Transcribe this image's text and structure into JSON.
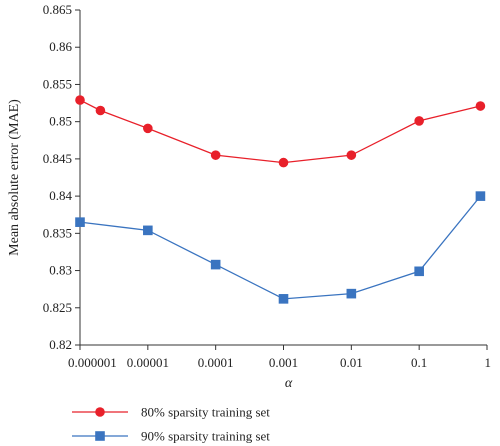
{
  "chart_data": {
    "type": "line",
    "xlabel": "α",
    "ylabel": "Mean absolute error (MAE)",
    "x_scale": "log",
    "xlim": [
      1e-06,
      1
    ],
    "ylim": [
      0.82,
      0.865
    ],
    "x_ticks": [
      "0.000001",
      "0.00001",
      "0.0001",
      "0.001",
      "0.01",
      "0.1",
      "1"
    ],
    "x_tick_values": [
      1e-06,
      1e-05,
      0.0001,
      0.001,
      0.01,
      0.1,
      1
    ],
    "y_ticks": [
      "0.82",
      "0.825",
      "0.83",
      "0.835",
      "0.84",
      "0.845",
      "0.85",
      "0.855",
      "0.86",
      "0.865"
    ],
    "y_tick_values": [
      0.82,
      0.825,
      0.83,
      0.835,
      0.84,
      0.845,
      0.85,
      0.855,
      0.86,
      0.865
    ],
    "grid": false,
    "legend_position": "bottom",
    "series": [
      {
        "name": "80% sparsity training set",
        "color": "#e8202a",
        "marker": "circle",
        "x": [
          1e-06,
          2e-06,
          1e-05,
          0.0001,
          0.001,
          0.01,
          0.1,
          0.8
        ],
        "y": [
          0.8529,
          0.8515,
          0.8491,
          0.8455,
          0.8445,
          0.8455,
          0.8501,
          0.8521
        ]
      },
      {
        "name": "90% sparsity training set",
        "color": "#3a74c0",
        "marker": "square",
        "x": [
          1e-06,
          1e-05,
          0.0001,
          0.001,
          0.01,
          0.1,
          0.8
        ],
        "y": [
          0.8365,
          0.8354,
          0.8308,
          0.8262,
          0.8269,
          0.8299,
          0.84
        ]
      }
    ]
  }
}
